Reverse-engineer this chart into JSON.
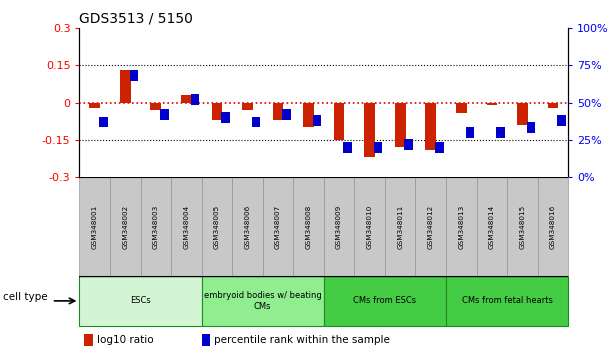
{
  "title": "GDS3513 / 5150",
  "samples": [
    "GSM348001",
    "GSM348002",
    "GSM348003",
    "GSM348004",
    "GSM348005",
    "GSM348006",
    "GSM348007",
    "GSM348008",
    "GSM348009",
    "GSM348010",
    "GSM348011",
    "GSM348012",
    "GSM348013",
    "GSM348014",
    "GSM348015",
    "GSM348016"
  ],
  "log10_ratio": [
    -0.02,
    0.13,
    -0.03,
    0.03,
    -0.07,
    -0.03,
    -0.07,
    -0.1,
    -0.15,
    -0.22,
    -0.18,
    -0.19,
    -0.04,
    -0.01,
    -0.09,
    -0.02
  ],
  "percentile_rank": [
    37,
    68,
    42,
    52,
    40,
    37,
    42,
    38,
    20,
    20,
    22,
    20,
    30,
    30,
    33,
    38
  ],
  "ylim": [
    -0.3,
    0.3
  ],
  "yticks_left": [
    -0.3,
    -0.15,
    0,
    0.15,
    0.3
  ],
  "yticks_right": [
    0,
    25,
    50,
    75,
    100
  ],
  "bar_color_red": "#cc2200",
  "bar_color_blue": "#0000cc",
  "dotted_line_red": "#dd0000",
  "groups": [
    {
      "label": "ESCs",
      "start": 0,
      "end": 3,
      "color": "#d4f5d4"
    },
    {
      "label": "embryoid bodies w/ beating\nCMs",
      "start": 4,
      "end": 7,
      "color": "#90ee90"
    },
    {
      "label": "CMs from ESCs",
      "start": 8,
      "end": 11,
      "color": "#44cc44"
    },
    {
      "label": "CMs from fetal hearts",
      "start": 12,
      "end": 15,
      "color": "#44cc44"
    }
  ],
  "cell_type_label": "cell type",
  "legend_red": "log10 ratio",
  "legend_blue": "percentile rank within the sample",
  "sample_box_color": "#c8c8c8",
  "sample_box_edge": "#888888"
}
